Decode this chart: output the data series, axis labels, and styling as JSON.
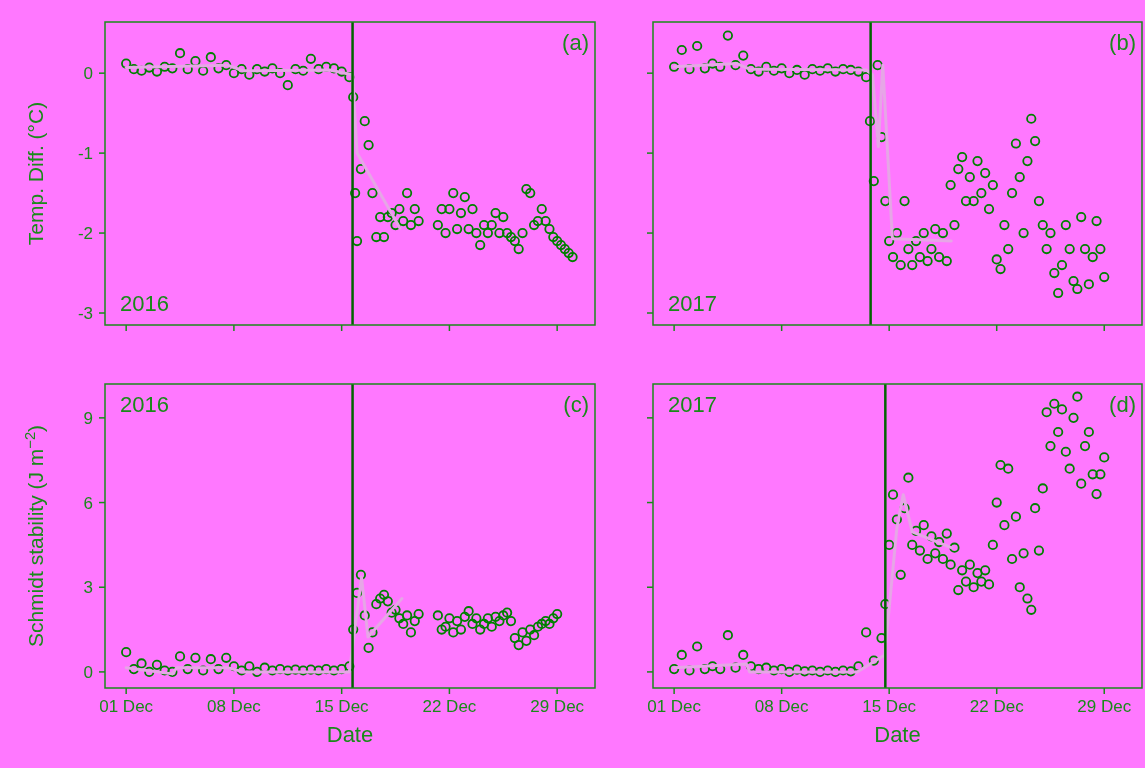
{
  "chart_data": [
    {
      "type": "scatter",
      "ylabel": "Temp. Diff. (°C)",
      "annotations": [
        "(a)",
        "2016"
      ],
      "tick_labels": "y",
      "xlim": [
        "2016-11-29T15:00",
        "2016-12-31T11:00"
      ],
      "xticks": [
        {
          "value": "2016-12-01",
          "label": null
        },
        {
          "value": "2016-12-08",
          "label": null
        },
        {
          "value": "2016-12-15",
          "label": null
        },
        {
          "value": "2016-12-22",
          "label": null
        },
        {
          "value": "2016-12-29",
          "label": null
        }
      ],
      "ylim": [
        -3.15,
        0.64
      ],
      "yticks": [
        -3,
        -2,
        -1,
        0
      ],
      "ref_lines": [
        {
          "axis": "x",
          "value": "2016-12-15T17:00",
          "color": "#006400"
        }
      ],
      "series": [
        {
          "marker": "circle",
          "color": "#008000",
          "x": [
            "2016-12-01T00:00",
            "2016-12-01T12:00",
            "2016-12-02T00:00",
            "2016-12-02T12:00",
            "2016-12-03T00:00",
            "2016-12-03T12:00",
            "2016-12-04T00:00",
            "2016-12-04T12:00",
            "2016-12-05T00:00",
            "2016-12-05T12:00",
            "2016-12-06T00:00",
            "2016-12-06T12:00",
            "2016-12-07T00:00",
            "2016-12-07T12:00",
            "2016-12-08T00:00",
            "2016-12-08T12:00",
            "2016-12-09T00:00",
            "2016-12-09T12:00",
            "2016-12-10T00:00",
            "2016-12-10T12:00",
            "2016-12-11T00:00",
            "2016-12-11T12:00",
            "2016-12-12T00:00",
            "2016-12-12T12:00",
            "2016-12-13T00:00",
            "2016-12-13T12:00",
            "2016-12-14T00:00",
            "2016-12-14T12:00",
            "2016-12-15T00:00",
            "2016-12-15T12:00",
            "2016-12-15T18:00",
            "2016-12-15T21:00",
            "2016-12-16T00:00",
            "2016-12-16T06:00",
            "2016-12-16T12:00",
            "2016-12-16T18:00",
            "2016-12-17T00:00",
            "2016-12-17T06:00",
            "2016-12-17T12:00",
            "2016-12-17T18:00",
            "2016-12-18T00:00",
            "2016-12-18T06:00",
            "2016-12-18T12:00",
            "2016-12-18T18:00",
            "2016-12-19T00:00",
            "2016-12-19T06:00",
            "2016-12-19T12:00",
            "2016-12-19T18:00",
            "2016-12-20T00:00",
            "2016-12-21T06:00",
            "2016-12-21T12:00",
            "2016-12-21T18:00",
            "2016-12-22T00:00",
            "2016-12-22T06:00",
            "2016-12-22T12:00",
            "2016-12-22T18:00",
            "2016-12-23T00:00",
            "2016-12-23T06:00",
            "2016-12-23T12:00",
            "2016-12-23T18:00",
            "2016-12-24T00:00",
            "2016-12-24T06:00",
            "2016-12-24T12:00",
            "2016-12-24T18:00",
            "2016-12-25T00:00",
            "2016-12-25T06:00",
            "2016-12-25T12:00",
            "2016-12-25T18:00",
            "2016-12-26T00:00",
            "2016-12-26T06:00",
            "2016-12-26T12:00",
            "2016-12-26T18:00",
            "2016-12-27T00:00",
            "2016-12-27T06:00",
            "2016-12-27T12:00",
            "2016-12-27T18:00",
            "2016-12-28T00:00",
            "2016-12-28T06:00",
            "2016-12-28T12:00",
            "2016-12-28T18:00",
            "2016-12-29T00:00",
            "2016-12-29T06:00",
            "2016-12-29T12:00",
            "2016-12-29T18:00",
            "2016-12-30T00:00"
          ],
          "values": [
            0.12,
            0.05,
            0.03,
            0.07,
            0.02,
            0.08,
            0.06,
            0.25,
            0.05,
            0.15,
            0.03,
            0.2,
            0.06,
            0.1,
            0.0,
            0.05,
            -0.02,
            0.05,
            0.02,
            0.06,
            0.0,
            -0.15,
            0.05,
            0.03,
            0.18,
            0.05,
            0.08,
            0.06,
            0.02,
            -0.05,
            -0.3,
            -1.5,
            -2.1,
            -1.2,
            -0.6,
            -0.9,
            -1.5,
            -2.05,
            -1.8,
            -2.05,
            -1.8,
            -1.75,
            -1.9,
            -1.7,
            -1.85,
            -1.5,
            -1.9,
            -1.7,
            -1.85,
            -1.9,
            -1.7,
            -2.0,
            -1.7,
            -1.5,
            -1.95,
            -1.75,
            -1.55,
            -1.95,
            -1.7,
            -2.0,
            -2.15,
            -1.9,
            -2.0,
            -1.9,
            -1.75,
            -2.0,
            -1.8,
            -2.0,
            -2.05,
            -2.1,
            -2.2,
            -2.0,
            -1.45,
            -1.5,
            -1.9,
            -1.85,
            -1.7,
            -1.85,
            -1.95,
            -2.05,
            -2.1,
            -2.15,
            -2.2,
            -2.25,
            -2.3
          ]
        },
        {
          "type": "line",
          "color": "#e6a6e6",
          "x": [
            "2016-12-01T00:00",
            "2016-12-07T14:00",
            "2016-12-08T14:00",
            "2016-12-14T05:00",
            "2016-12-15T17:00",
            "2016-12-16T00:00",
            "2016-12-18T19:00"
          ],
          "values": [
            0.07,
            0.1,
            0.03,
            0.04,
            -0.02,
            -1.0,
            -1.94
          ]
        }
      ]
    },
    {
      "type": "scatter",
      "annotations": [
        "(b)",
        "2017"
      ],
      "tick_labels": false,
      "xlim": [
        "2017-11-29T15:00",
        "2017-12-31T11:00"
      ],
      "xticks": [
        {
          "value": "2017-12-01",
          "label": null
        },
        {
          "value": "2017-12-08",
          "label": null
        },
        {
          "value": "2017-12-15",
          "label": null
        },
        {
          "value": "2017-12-22",
          "label": null
        },
        {
          "value": "2017-12-29",
          "label": null
        }
      ],
      "ylim": [
        -3.15,
        0.64
      ],
      "yticks": [
        {
          "value": -3,
          "label": null
        },
        {
          "value": -2,
          "label": null
        },
        {
          "value": -1,
          "label": null
        },
        {
          "value": 0,
          "label": null
        }
      ],
      "ref_lines": [
        {
          "axis": "x",
          "value": "2017-12-13T19:00",
          "color": "#006400"
        }
      ],
      "series": [
        {
          "marker": "circle",
          "color": "#008000",
          "x": [
            "2017-12-01T00:00",
            "2017-12-01T12:00",
            "2017-12-02T00:00",
            "2017-12-02T12:00",
            "2017-12-03T00:00",
            "2017-12-03T12:00",
            "2017-12-04T00:00",
            "2017-12-04T12:00",
            "2017-12-05T00:00",
            "2017-12-05T12:00",
            "2017-12-06T00:00",
            "2017-12-06T12:00",
            "2017-12-07T00:00",
            "2017-12-07T12:00",
            "2017-12-08T00:00",
            "2017-12-08T12:00",
            "2017-12-09T00:00",
            "2017-12-09T12:00",
            "2017-12-10T00:00",
            "2017-12-10T12:00",
            "2017-12-11T00:00",
            "2017-12-11T12:00",
            "2017-12-12T00:00",
            "2017-12-12T12:00",
            "2017-12-13T00:00",
            "2017-12-13T12:00",
            "2017-12-13T18:00",
            "2017-12-14T00:00",
            "2017-12-14T06:00",
            "2017-12-14T12:00",
            "2017-12-14T18:00",
            "2017-12-15T00:00",
            "2017-12-15T06:00",
            "2017-12-15T12:00",
            "2017-12-15T18:00",
            "2017-12-16T00:00",
            "2017-12-16T06:00",
            "2017-12-16T12:00",
            "2017-12-16T18:00",
            "2017-12-17T00:00",
            "2017-12-17T06:00",
            "2017-12-17T12:00",
            "2017-12-17T18:00",
            "2017-12-18T00:00",
            "2017-12-18T06:00",
            "2017-12-18T12:00",
            "2017-12-18T18:00",
            "2017-12-19T00:00",
            "2017-12-19T06:00",
            "2017-12-19T12:00",
            "2017-12-19T18:00",
            "2017-12-20T00:00",
            "2017-12-20T06:00",
            "2017-12-20T12:00",
            "2017-12-20T18:00",
            "2017-12-21T00:00",
            "2017-12-21T06:00",
            "2017-12-21T12:00",
            "2017-12-21T18:00",
            "2017-12-22T00:00",
            "2017-12-22T06:00",
            "2017-12-22T12:00",
            "2017-12-22T18:00",
            "2017-12-23T00:00",
            "2017-12-23T06:00",
            "2017-12-23T12:00",
            "2017-12-23T18:00",
            "2017-12-24T00:00",
            "2017-12-24T06:00",
            "2017-12-24T12:00",
            "2017-12-24T18:00",
            "2017-12-25T00:00",
            "2017-12-25T06:00",
            "2017-12-25T12:00",
            "2017-12-25T18:00",
            "2017-12-26T00:00",
            "2017-12-26T06:00",
            "2017-12-26T12:00",
            "2017-12-26T18:00",
            "2017-12-27T00:00",
            "2017-12-27T06:00",
            "2017-12-27T12:00",
            "2017-12-27T18:00",
            "2017-12-28T00:00",
            "2017-12-28T06:00",
            "2017-12-28T12:00",
            "2017-12-28T18:00",
            "2017-12-29T00:00"
          ],
          "values": [
            0.08,
            0.29,
            0.05,
            0.34,
            0.06,
            0.12,
            0.08,
            0.47,
            0.1,
            0.22,
            0.05,
            0.02,
            0.08,
            0.03,
            0.06,
            0.0,
            0.04,
            -0.02,
            0.05,
            0.03,
            0.06,
            0.02,
            0.05,
            0.04,
            0.02,
            -0.05,
            -0.6,
            -1.35,
            0.1,
            -0.8,
            -1.6,
            -2.1,
            -2.3,
            -2.0,
            -2.4,
            -1.6,
            -2.2,
            -2.4,
            -2.1,
            -2.3,
            -2.0,
            -2.35,
            -2.2,
            -1.95,
            -2.3,
            -2.0,
            -2.35,
            -1.4,
            -1.9,
            -1.2,
            -1.05,
            -1.6,
            -1.3,
            -1.6,
            -1.1,
            -1.5,
            -1.25,
            -1.7,
            -1.4,
            -2.33,
            -2.45,
            -1.9,
            -2.2,
            -1.5,
            -0.88,
            -1.3,
            -2.0,
            -1.1,
            -0.57,
            -0.85,
            -1.6,
            -1.9,
            -2.2,
            -2.0,
            -2.5,
            -2.75,
            -2.4,
            -1.9,
            -2.2,
            -2.6,
            -2.7,
            -1.8,
            -2.2,
            -2.64,
            -2.3,
            -1.85,
            -2.2,
            -2.55
          ]
        },
        {
          "type": "line",
          "color": "#e6a6e6",
          "x": [
            "2017-12-01T00:00",
            "2017-12-05T02:00",
            "2017-12-05T22:00",
            "2017-12-13T12:00",
            "2017-12-13T22:00",
            "2017-12-14T07:00",
            "2017-12-14T14:00",
            "2017-12-15T05:00",
            "2017-12-19T01:00"
          ],
          "values": [
            0.08,
            0.12,
            0.05,
            0.04,
            -0.02,
            -0.92,
            0.1,
            -2.07,
            -2.1
          ]
        }
      ]
    },
    {
      "type": "scatter",
      "xlabel": "Date",
      "ylabel": "Schmidt stability (J m$^{−2}$)",
      "annotations": [
        "(c)",
        "2016"
      ],
      "xlim": [
        "2016-11-29T15:00",
        "2016-12-31T11:00"
      ],
      "xticks": [
        {
          "value": "2016-12-01",
          "label": "01 Dec"
        },
        {
          "value": "2016-12-08",
          "label": "08 Dec"
        },
        {
          "value": "2016-12-15",
          "label": "15 Dec"
        },
        {
          "value": "2016-12-22",
          "label": "22 Dec"
        },
        {
          "value": "2016-12-29",
          "label": "29 Dec"
        }
      ],
      "ylim": [
        -0.57,
        10.2
      ],
      "yticks": [
        0,
        3,
        6,
        9
      ],
      "ref_lines": [
        {
          "axis": "x",
          "value": "2016-12-15T17:00",
          "color": "#006400"
        }
      ],
      "series": [
        {
          "marker": "circle",
          "color": "#008000",
          "x": [
            "2016-12-01T00:00",
            "2016-12-01T12:00",
            "2016-12-02T00:00",
            "2016-12-02T12:00",
            "2016-12-03T00:00",
            "2016-12-03T12:00",
            "2016-12-04T00:00",
            "2016-12-04T12:00",
            "2016-12-05T00:00",
            "2016-12-05T12:00",
            "2016-12-06T00:00",
            "2016-12-06T12:00",
            "2016-12-07T00:00",
            "2016-12-07T12:00",
            "2016-12-08T00:00",
            "2016-12-08T12:00",
            "2016-12-09T00:00",
            "2016-12-09T12:00",
            "2016-12-10T00:00",
            "2016-12-10T12:00",
            "2016-12-11T00:00",
            "2016-12-11T12:00",
            "2016-12-12T00:00",
            "2016-12-12T12:00",
            "2016-12-13T00:00",
            "2016-12-13T12:00",
            "2016-12-14T00:00",
            "2016-12-14T12:00",
            "2016-12-15T00:00",
            "2016-12-15T12:00",
            "2016-12-15T18:00",
            "2016-12-16T00:00",
            "2016-12-16T06:00",
            "2016-12-16T12:00",
            "2016-12-16T18:00",
            "2016-12-17T00:00",
            "2016-12-17T06:00",
            "2016-12-17T12:00",
            "2016-12-17T18:00",
            "2016-12-18T00:00",
            "2016-12-18T06:00",
            "2016-12-18T12:00",
            "2016-12-18T18:00",
            "2016-12-19T00:00",
            "2016-12-19T06:00",
            "2016-12-19T12:00",
            "2016-12-19T18:00",
            "2016-12-20T00:00",
            "2016-12-21T06:00",
            "2016-12-21T12:00",
            "2016-12-21T18:00",
            "2016-12-22T00:00",
            "2016-12-22T06:00",
            "2016-12-22T12:00",
            "2016-12-22T18:00",
            "2016-12-23T00:00",
            "2016-12-23T06:00",
            "2016-12-23T12:00",
            "2016-12-23T18:00",
            "2016-12-24T00:00",
            "2016-12-24T06:00",
            "2016-12-24T12:00",
            "2016-12-24T18:00",
            "2016-12-25T00:00",
            "2016-12-25T06:00",
            "2016-12-25T12:00",
            "2016-12-25T18:00",
            "2016-12-26T00:00",
            "2016-12-26T06:00",
            "2016-12-26T12:00",
            "2016-12-26T18:00",
            "2016-12-27T00:00",
            "2016-12-27T06:00",
            "2016-12-27T12:00",
            "2016-12-27T18:00",
            "2016-12-28T00:00",
            "2016-12-28T06:00",
            "2016-12-28T12:00",
            "2016-12-28T18:00",
            "2016-12-29T00:00"
          ],
          "values": [
            0.7,
            0.1,
            0.3,
            0.0,
            0.25,
            0.05,
            0.0,
            0.55,
            0.1,
            0.5,
            0.05,
            0.45,
            0.1,
            0.5,
            0.2,
            0.05,
            0.2,
            0.0,
            0.15,
            0.05,
            0.1,
            0.05,
            0.08,
            0.05,
            0.08,
            0.05,
            0.1,
            0.05,
            0.1,
            0.2,
            1.5,
            2.8,
            3.44,
            2.0,
            0.85,
            1.4,
            2.4,
            2.6,
            2.73,
            2.5,
            2.1,
            2.2,
            1.9,
            1.7,
            2.0,
            1.4,
            1.8,
            2.05,
            2.0,
            1.5,
            1.6,
            1.9,
            1.4,
            1.8,
            1.5,
            1.95,
            2.15,
            1.7,
            1.9,
            1.5,
            1.7,
            1.9,
            1.6,
            1.95,
            1.8,
            2.0,
            2.1,
            1.8,
            1.2,
            0.95,
            1.4,
            1.1,
            1.5,
            1.3,
            1.6,
            1.7,
            1.8,
            1.7,
            1.9,
            2.05
          ]
        },
        {
          "type": "line",
          "color": "#e6a6e6",
          "x": [
            "2016-12-01T00:00",
            "2016-12-04T00:00",
            "2016-12-04T07:00",
            "2016-12-07T14:00",
            "2016-12-08T14:00",
            "2016-12-15T12:00",
            "2016-12-16T07:00",
            "2016-12-16T17:00",
            "2016-12-18T22:00"
          ],
          "values": [
            0.15,
            -0.07,
            0.15,
            0.15,
            0.0,
            0.0,
            3.36,
            1.24,
            2.6
          ]
        }
      ]
    },
    {
      "type": "scatter",
      "xlabel": "Date",
      "annotations": [
        "(d)",
        "2017"
      ],
      "tick_labels": "x",
      "xlim": [
        "2017-11-29T15:00",
        "2017-12-31T11:00"
      ],
      "xticks": [
        {
          "value": "2017-12-01",
          "label": "01 Dec"
        },
        {
          "value": "2017-12-08",
          "label": "08 Dec"
        },
        {
          "value": "2017-12-15",
          "label": "15 Dec"
        },
        {
          "value": "2017-12-22",
          "label": "22 Dec"
        },
        {
          "value": "2017-12-29",
          "label": "29 Dec"
        }
      ],
      "ylim": [
        -0.57,
        10.2
      ],
      "yticks": [
        {
          "value": 0,
          "label": null
        },
        {
          "value": 3,
          "label": null
        },
        {
          "value": 6,
          "label": null
        },
        {
          "value": 9,
          "label": null
        }
      ],
      "ref_lines": [
        {
          "axis": "x",
          "value": "2017-12-14T18:00",
          "color": "#006400"
        }
      ],
      "series": [
        {
          "marker": "circle",
          "color": "#008000",
          "x": [
            "2017-12-01T00:00",
            "2017-12-01T12:00",
            "2017-12-02T00:00",
            "2017-12-02T12:00",
            "2017-12-03T00:00",
            "2017-12-03T12:00",
            "2017-12-04T00:00",
            "2017-12-04T12:00",
            "2017-12-05T00:00",
            "2017-12-05T12:00",
            "2017-12-06T00:00",
            "2017-12-06T12:00",
            "2017-12-07T00:00",
            "2017-12-07T12:00",
            "2017-12-08T00:00",
            "2017-12-08T12:00",
            "2017-12-09T00:00",
            "2017-12-09T12:00",
            "2017-12-10T00:00",
            "2017-12-10T12:00",
            "2017-12-11T00:00",
            "2017-12-11T12:00",
            "2017-12-12T00:00",
            "2017-12-12T12:00",
            "2017-12-13T00:00",
            "2017-12-13T12:00",
            "2017-12-14T00:00",
            "2017-12-14T12:00",
            "2017-12-14T18:00",
            "2017-12-15T00:00",
            "2017-12-15T06:00",
            "2017-12-15T12:00",
            "2017-12-15T18:00",
            "2017-12-16T00:00",
            "2017-12-16T06:00",
            "2017-12-16T12:00",
            "2017-12-16T18:00",
            "2017-12-17T00:00",
            "2017-12-17T06:00",
            "2017-12-17T12:00",
            "2017-12-17T18:00",
            "2017-12-18T00:00",
            "2017-12-18T06:00",
            "2017-12-18T12:00",
            "2017-12-18T18:00",
            "2017-12-19T00:00",
            "2017-12-19T06:00",
            "2017-12-19T12:00",
            "2017-12-19T18:00",
            "2017-12-20T00:00",
            "2017-12-20T06:00",
            "2017-12-20T12:00",
            "2017-12-20T18:00",
            "2017-12-21T00:00",
            "2017-12-21T06:00",
            "2017-12-21T12:00",
            "2017-12-21T18:00",
            "2017-12-22T00:00",
            "2017-12-22T06:00",
            "2017-12-22T12:00",
            "2017-12-22T18:00",
            "2017-12-23T00:00",
            "2017-12-23T06:00",
            "2017-12-23T12:00",
            "2017-12-23T18:00",
            "2017-12-24T00:00",
            "2017-12-24T06:00",
            "2017-12-24T12:00",
            "2017-12-24T18:00",
            "2017-12-25T00:00",
            "2017-12-25T06:00",
            "2017-12-25T12:00",
            "2017-12-25T18:00",
            "2017-12-26T00:00",
            "2017-12-26T06:00",
            "2017-12-26T12:00",
            "2017-12-26T18:00",
            "2017-12-27T00:00",
            "2017-12-27T06:00",
            "2017-12-27T12:00",
            "2017-12-27T18:00",
            "2017-12-28T00:00",
            "2017-12-28T06:00",
            "2017-12-28T12:00",
            "2017-12-28T18:00",
            "2017-12-29T00:00"
          ],
          "values": [
            0.1,
            0.6,
            0.05,
            0.9,
            0.1,
            0.2,
            0.1,
            1.3,
            0.15,
            0.6,
            0.2,
            0.1,
            0.15,
            0.05,
            0.1,
            0.0,
            0.08,
            0.02,
            0.05,
            0.0,
            0.05,
            0.0,
            0.05,
            0.02,
            0.2,
            1.4,
            0.4,
            1.2,
            2.4,
            4.5,
            6.28,
            5.4,
            3.44,
            5.8,
            6.88,
            4.5,
            5.0,
            4.3,
            5.2,
            4.0,
            4.8,
            4.2,
            4.6,
            4.0,
            4.9,
            3.8,
            4.4,
            2.9,
            3.6,
            3.2,
            3.8,
            3.0,
            3.5,
            3.2,
            3.6,
            3.1,
            4.5,
            6.0,
            7.33,
            5.2,
            7.2,
            4.0,
            5.5,
            3.0,
            4.2,
            2.6,
            2.2,
            5.8,
            4.3,
            6.5,
            9.2,
            8.0,
            9.5,
            8.5,
            9.3,
            7.8,
            7.2,
            9.0,
            9.75,
            6.67,
            8.0,
            8.5,
            7.0,
            6.3,
            7.0,
            7.6
          ]
        },
        {
          "type": "line",
          "color": "#e6a6e6",
          "x": [
            "2017-12-01T00:00",
            "2017-12-05T17:00",
            "2017-12-05T22:00",
            "2017-12-12T22:00",
            "2017-12-14T17:00",
            "2017-12-15T12:00",
            "2017-12-15T22:00",
            "2017-12-16T12:00",
            "2017-12-19T01:00"
          ],
          "values": [
            0.15,
            0.28,
            0.0,
            0.0,
            0.6,
            5.1,
            6.28,
            4.96,
            4.4
          ]
        }
      ]
    }
  ]
}
